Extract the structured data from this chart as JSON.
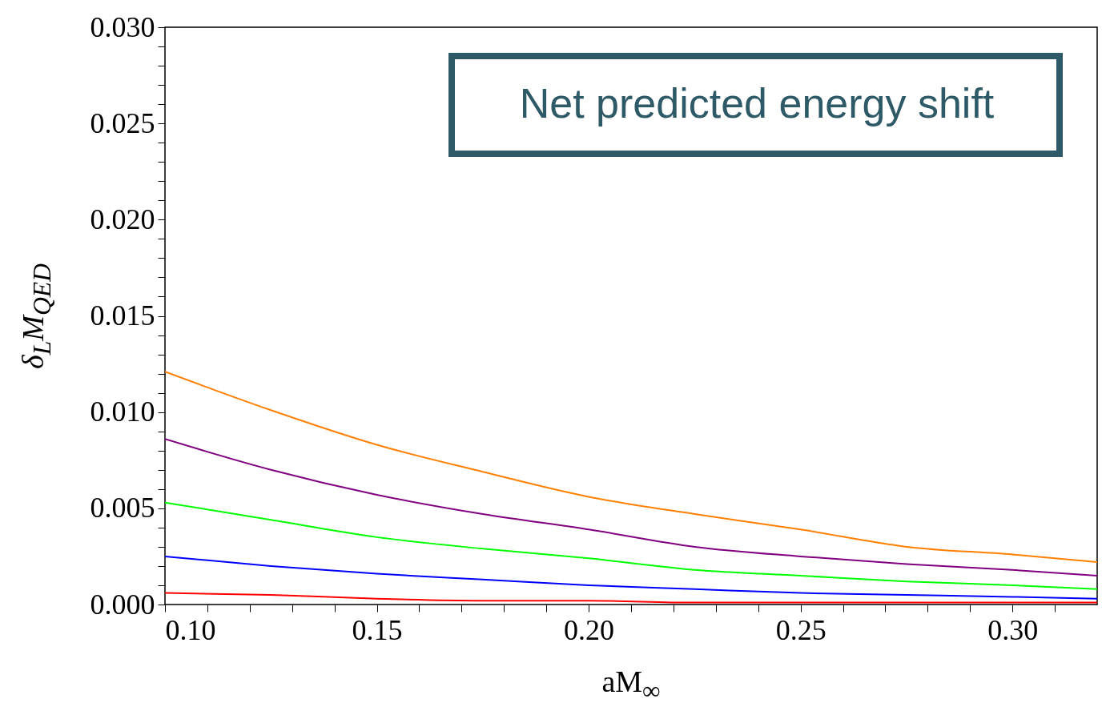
{
  "chart_data": {
    "type": "line",
    "xlabel": "aM$_{∞}$",
    "ylabel": "δ$_{L}$M$_{QED}$",
    "annotations": [
      "Net predicted energy shift"
    ],
    "x": [
      0.1,
      0.125,
      0.15,
      0.175,
      0.2,
      0.225,
      0.25,
      0.275,
      0.3,
      0.32
    ],
    "series": [
      {
        "color": "#ff8000",
        "values": [
          0.0121,
          0.0101,
          0.0083,
          0.0069,
          0.0056,
          0.0047,
          0.0039,
          0.003,
          0.0026,
          0.0022
        ]
      },
      {
        "color": "#800080",
        "values": [
          0.0086,
          0.007,
          0.0057,
          0.0047,
          0.0039,
          0.003,
          0.0025,
          0.0021,
          0.0018,
          0.0015
        ]
      },
      {
        "color": "#00ff00",
        "values": [
          0.0053,
          0.0044,
          0.0035,
          0.0029,
          0.0024,
          0.0018,
          0.0015,
          0.0012,
          0.001,
          0.0008
        ]
      },
      {
        "color": "#0000ff",
        "values": [
          0.0025,
          0.002,
          0.0016,
          0.0013,
          0.001,
          0.0008,
          0.0006,
          0.0005,
          0.0004,
          0.0003
        ]
      },
      {
        "color": "#ff0000",
        "values": [
          0.0006,
          0.0005,
          0.0003,
          0.0002,
          0.0002,
          0.0001,
          0.0001,
          0.0001,
          0.0001,
          0.0001
        ]
      }
    ],
    "xlim": [
      0.1,
      0.32
    ],
    "xticks": [
      {
        "value": 0.1,
        "label": "0.10"
      },
      {
        "value": 0.11,
        "label": null
      },
      {
        "value": 0.12,
        "label": null
      },
      {
        "value": 0.13,
        "label": null
      },
      {
        "value": 0.14,
        "label": null
      },
      {
        "value": 0.15,
        "label": "0.15"
      },
      {
        "value": 0.16,
        "label": null
      },
      {
        "value": 0.17,
        "label": null
      },
      {
        "value": 0.18,
        "label": null
      },
      {
        "value": 0.19,
        "label": null
      },
      {
        "value": 0.2,
        "label": "0.20"
      },
      {
        "value": 0.21,
        "label": null
      },
      {
        "value": 0.22,
        "label": null
      },
      {
        "value": 0.23,
        "label": null
      },
      {
        "value": 0.24,
        "label": null
      },
      {
        "value": 0.25,
        "label": "0.25"
      },
      {
        "value": 0.26,
        "label": null
      },
      {
        "value": 0.27,
        "label": null
      },
      {
        "value": 0.28,
        "label": null
      },
      {
        "value": 0.29,
        "label": null
      },
      {
        "value": 0.3,
        "label": "0.30"
      },
      {
        "value": 0.31,
        "label": null
      }
    ],
    "ylim": [
      0,
      0.03
    ],
    "yticks": [
      {
        "value": 0,
        "label": "0.000"
      },
      {
        "value": 0.001,
        "label": null
      },
      {
        "value": 0.002,
        "label": null
      },
      {
        "value": 0.003,
        "label": null
      },
      {
        "value": 0.004,
        "label": null
      },
      {
        "value": 0.005,
        "label": "0.005"
      },
      {
        "value": 0.006,
        "label": null
      },
      {
        "value": 0.007,
        "label": null
      },
      {
        "value": 0.008,
        "label": null
      },
      {
        "value": 0.009,
        "label": null
      },
      {
        "value": 0.01,
        "label": "0.010"
      },
      {
        "value": 0.011,
        "label": null
      },
      {
        "value": 0.012,
        "label": null
      },
      {
        "value": 0.013,
        "label": null
      },
      {
        "value": 0.014,
        "label": null
      },
      {
        "value": 0.015,
        "label": "0.015"
      },
      {
        "value": 0.016,
        "label": null
      },
      {
        "value": 0.017,
        "label": null
      },
      {
        "value": 0.018,
        "label": null
      },
      {
        "value": 0.019,
        "label": null
      },
      {
        "value": 0.02,
        "label": "0.020"
      },
      {
        "value": 0.021,
        "label": null
      },
      {
        "value": 0.022,
        "label": null
      },
      {
        "value": 0.023,
        "label": null
      },
      {
        "value": 0.024,
        "label": null
      },
      {
        "value": 0.025,
        "label": "0.025"
      },
      {
        "value": 0.026,
        "label": null
      },
      {
        "value": 0.027,
        "label": null
      },
      {
        "value": 0.028,
        "label": null
      },
      {
        "value": 0.029,
        "label": null
      },
      {
        "value": 0.03,
        "label": "0.030"
      }
    ],
    "grid": false,
    "legend": false,
    "marker": "none",
    "line_style": "solid"
  }
}
